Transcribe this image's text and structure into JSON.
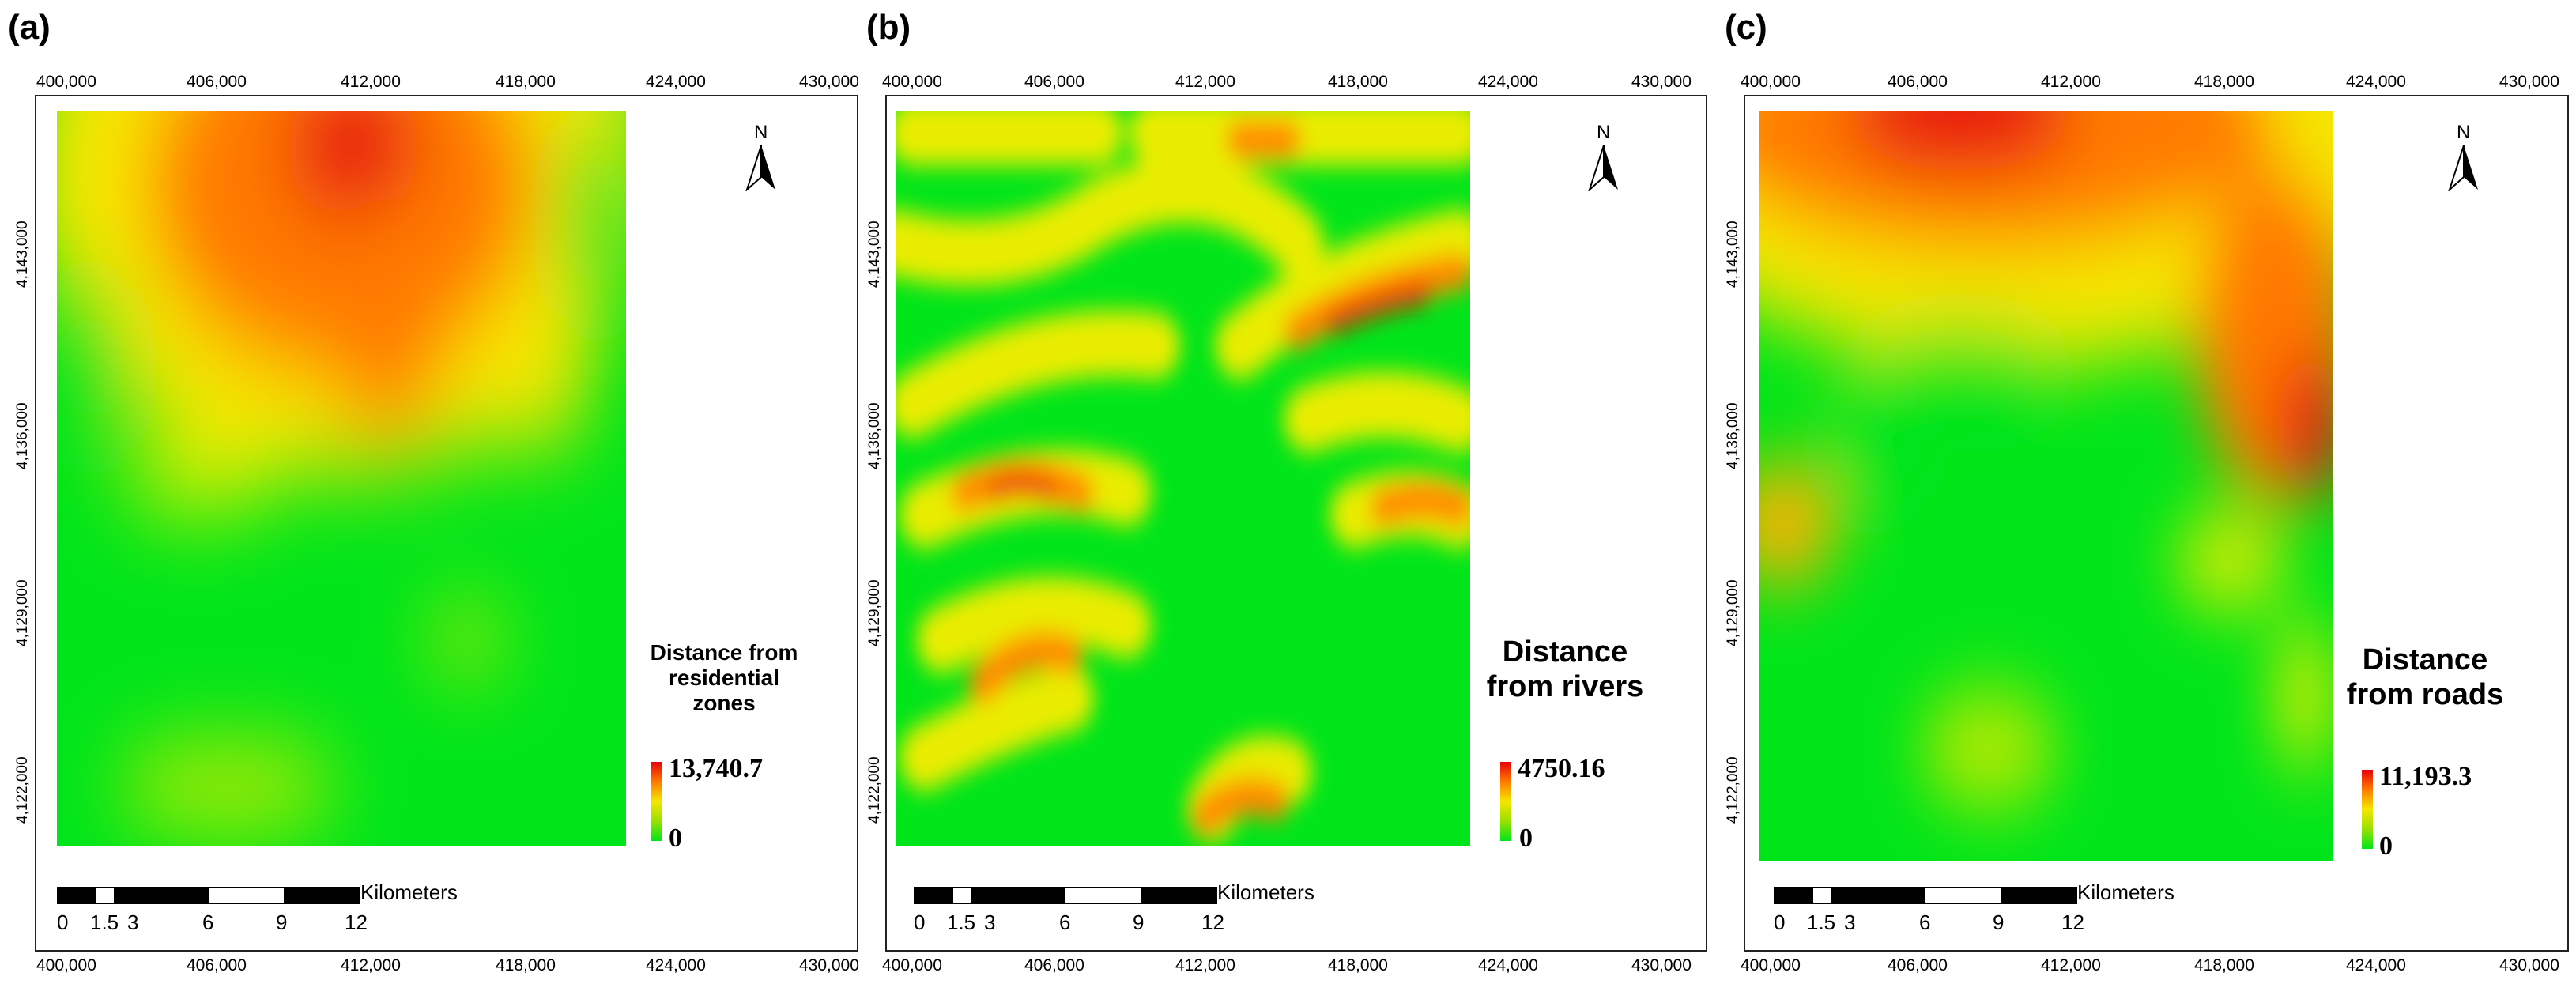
{
  "panels": [
    {
      "label": "(a)",
      "x_ticks": [
        "400,000",
        "406,000",
        "412,000",
        "418,000",
        "424,000",
        "430,000"
      ],
      "y_ticks": [
        "4,143,000",
        "4,136,000",
        "4,129,000",
        "4,122,000"
      ],
      "legend_title": [
        "Distance from",
        "residential",
        "zones"
      ],
      "legend_max": "13,740.7",
      "legend_min": "0",
      "north": "N",
      "scale_unit": "Kilometers",
      "scale_numbers": [
        "0",
        "1.5",
        "3",
        "6",
        "9",
        "12"
      ]
    },
    {
      "label": "(b)",
      "x_ticks": [
        "400,000",
        "406,000",
        "412,000",
        "418,000",
        "424,000",
        "430,000"
      ],
      "y_ticks": [
        "4,143,000",
        "4,136,000",
        "4,129,000",
        "4,122,000"
      ],
      "legend_title": [
        "Distance",
        "from rivers"
      ],
      "legend_max": "4750.16",
      "legend_min": "0",
      "north": "N",
      "scale_unit": "Kilometers",
      "scale_numbers": [
        "0",
        "1.5",
        "3",
        "6",
        "9",
        "12"
      ]
    },
    {
      "label": "(c)",
      "x_ticks": [
        "400,000",
        "406,000",
        "412,000",
        "418,000",
        "424,000",
        "430,000"
      ],
      "y_ticks": [
        "4,143,000",
        "4,136,000",
        "4,129,000",
        "4,122,000"
      ],
      "legend_title": [
        "Distance",
        "from roads"
      ],
      "legend_max": "11,193.3",
      "legend_min": "0",
      "north": "N",
      "scale_unit": "Kilometers",
      "scale_numbers": [
        "0",
        "1.5",
        "3",
        "6",
        "9",
        "12"
      ]
    }
  ],
  "colors": {
    "near": "#00e51a",
    "mid": "#f5e600",
    "far": "#e8000a"
  }
}
